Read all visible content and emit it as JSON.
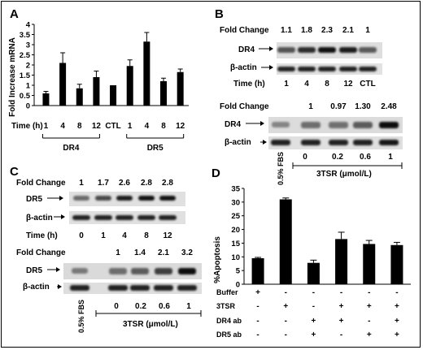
{
  "panels": {
    "A": {
      "letter": "A",
      "chart_data": {
        "type": "bar",
        "ylabel": "Fold Increase mRNA",
        "ylim": [
          0,
          4
        ],
        "yticks": [
          "0",
          "0.5",
          "1",
          "1.5",
          "2",
          "2.5",
          "3",
          "3.5",
          "4"
        ],
        "xlabel": "Time (h)",
        "categories": [
          "1",
          "4",
          "8",
          "12",
          "CTL",
          "1",
          "4",
          "8",
          "12"
        ],
        "values": [
          0.6,
          2.1,
          0.85,
          1.4,
          1.0,
          1.95,
          3.15,
          1.2,
          1.65
        ],
        "errors": [
          0.1,
          0.5,
          0.2,
          0.3,
          0.0,
          0.3,
          0.45,
          0.15,
          0.15
        ],
        "groups": [
          {
            "label": "DR4",
            "from": 0,
            "to": 3
          },
          {
            "label": "DR5",
            "from": 5,
            "to": 8
          }
        ]
      }
    },
    "B": {
      "letter": "B",
      "top": {
        "fold_change_label": "Fold Change",
        "fold_changes": [
          "1.1",
          "1.8",
          "2.3",
          "2.1",
          "1"
        ],
        "row1": "DR4",
        "row2": "β-actin",
        "time_label": "Time (h)",
        "times": [
          "1",
          "4",
          "8",
          "12",
          "CTL"
        ]
      },
      "bottom": {
        "fold_change_label": "Fold Change",
        "fold_changes": [
          "1",
          "0.97",
          "1.30",
          "2.48"
        ],
        "row1": "DR4",
        "row2": "β-actin",
        "control_label": "0.5% FBS",
        "doses": [
          "0",
          "0.2",
          "0.6",
          "1"
        ],
        "dose_label": "3TSR (μmol/L)"
      }
    },
    "C": {
      "letter": "C",
      "top": {
        "fold_change_label": "Fold Change",
        "fold_changes": [
          "1",
          "1.7",
          "2.6",
          "2.8",
          "2.8"
        ],
        "row1": "DR5",
        "row2": "β-actin",
        "time_label": "Time (h)",
        "times": [
          "0",
          "1",
          "4",
          "8",
          "12"
        ]
      },
      "bottom": {
        "fold_change_label": "Fold Change",
        "fold_changes": [
          "1",
          "1.4",
          "2.1",
          "3.2"
        ],
        "row1": "DR5",
        "row2": "β-actin",
        "control_label": "0.5% FBS",
        "doses": [
          "0",
          "0.2",
          "0.6",
          "1"
        ],
        "dose_label": "3TSR (μmol/L)"
      }
    },
    "D": {
      "letter": "D",
      "chart_data": {
        "type": "bar",
        "ylabel": "%Apoptosis",
        "ylim": [
          0,
          35
        ],
        "yticks": [
          "0",
          "5",
          "10",
          "15",
          "20",
          "25",
          "30",
          "35"
        ],
        "values": [
          9.5,
          31.0,
          7.8,
          16.5,
          14.7,
          14.3
        ],
        "errors": [
          0.3,
          0.5,
          1.0,
          2.5,
          1.3,
          1.0
        ],
        "treatments": [
          {
            "label": "Buffer",
            "signs": [
              "+",
              "-",
              "-",
              "-",
              "-",
              "-"
            ]
          },
          {
            "label": "3TSR",
            "signs": [
              "-",
              "+",
              "-",
              "+",
              "+",
              "+"
            ]
          },
          {
            "label": "DR4 ab",
            "signs": [
              "-",
              "-",
              "+",
              "+",
              "-",
              "+"
            ]
          },
          {
            "label": "DR5 ab",
            "signs": [
              "-",
              "-",
              "+",
              "-",
              "+",
              "+"
            ]
          }
        ]
      }
    }
  }
}
